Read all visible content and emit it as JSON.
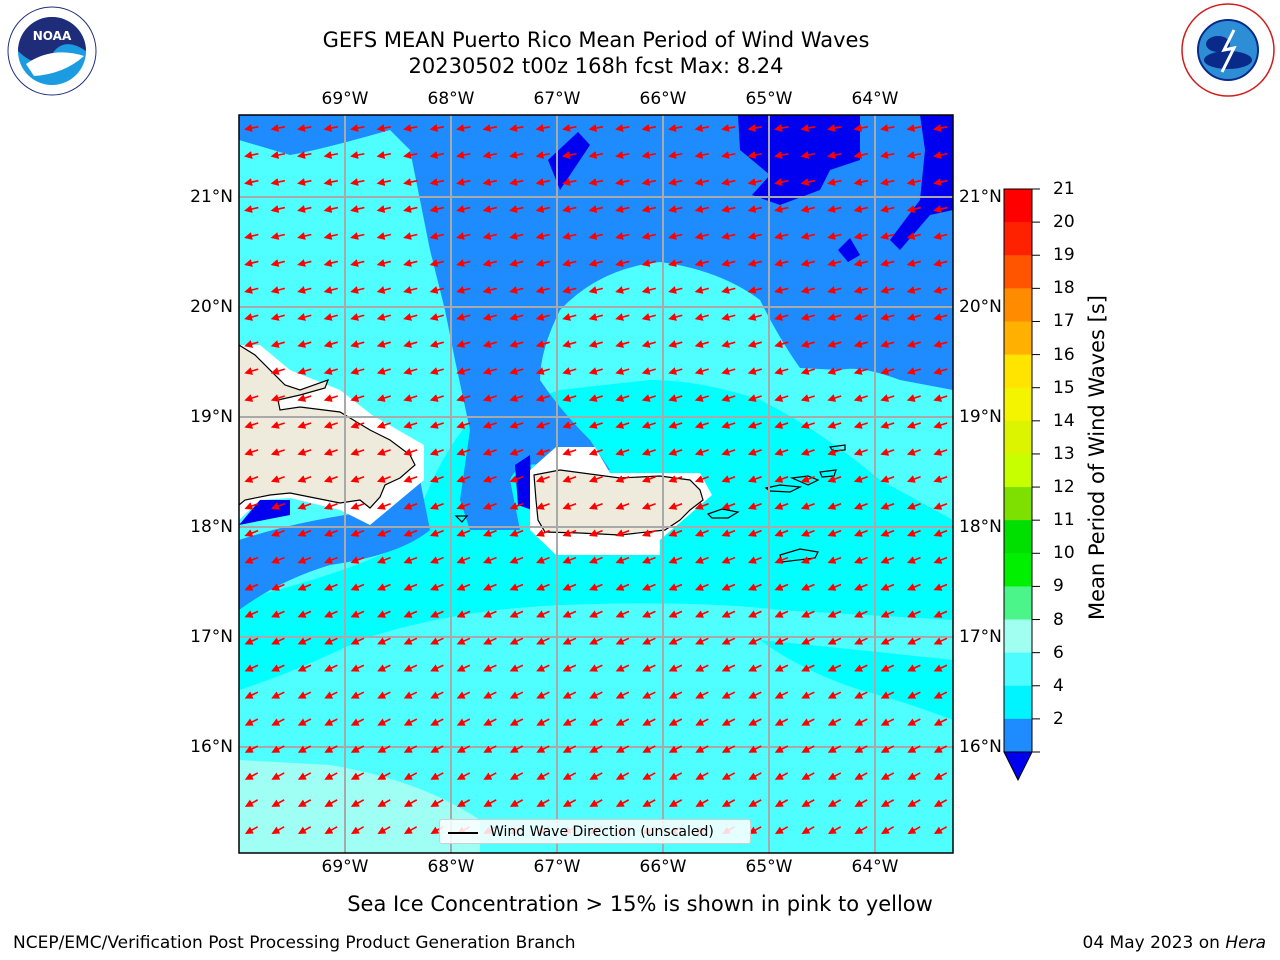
{
  "titles": {
    "line1": "GEFS MEAN Puerto Rico Mean Period of Wind Waves",
    "line2": "20230502 t00z 168h fcst   Max: 8.24"
  },
  "logos": {
    "left": "NOAA",
    "right": "NATIONAL WEATHER SERVICE"
  },
  "map": {
    "lon_ticks": [
      "69°W",
      "68°W",
      "67°W",
      "66°W",
      "65°W",
      "64°W"
    ],
    "lat_ticks": [
      "21°N",
      "20°N",
      "19°N",
      "18°N",
      "17°N",
      "16°N"
    ],
    "legend_label": "Wind Wave Direction (unscaled)"
  },
  "colorbar": {
    "label": "Mean Period of Wind Waves [s]",
    "ticks": [
      "21",
      "20",
      "19",
      "18",
      "17",
      "16",
      "15",
      "14",
      "13",
      "12",
      "11",
      "10",
      "9",
      "8",
      "6",
      "4",
      "2"
    ],
    "colors": [
      "#ff0000",
      "#ff2200",
      "#ff5500",
      "#ff8c00",
      "#ffb000",
      "#ffe400",
      "#f4f400",
      "#ddf400",
      "#c8ff00",
      "#7ee000",
      "#00e000",
      "#00f000",
      "#4cf58a",
      "#a0fff0",
      "#4cfcff",
      "#00f4ff",
      "#1e8cff"
    ],
    "under_color": "#0000f0"
  },
  "chart_data": {
    "type": "heatmap",
    "title": "GEFS MEAN Puerto Rico Mean Period of Wind Waves",
    "subtitle": "20230502 t00z 168h fcst   Max: 8.24",
    "x_axis": "longitude",
    "xlim": [
      "69.9°W",
      "63.2°W"
    ],
    "y_axis": "latitude",
    "ylim": [
      "15.1°N",
      "21.7°N"
    ],
    "color_label": "Mean Period of Wind Waves [s]",
    "color_levels": [
      2,
      4,
      6,
      8,
      9,
      10,
      11,
      12,
      13,
      14,
      15,
      16,
      17,
      18,
      19,
      20,
      21
    ],
    "max_value": 8.24,
    "grid": true,
    "legend_placement": "bottom-center",
    "vectors": "Wind Wave Direction (unscaled)"
  },
  "notes": {
    "sea_ice": "Sea Ice Concentration > 15% is shown in pink to yellow",
    "credit": "NCEP/EMC/Verification Post Processing Product Generation Branch",
    "date": "04 May 2023 on ",
    "machine": "Hera"
  },
  "colors": {
    "ocean_light": "#00ffff",
    "ocean_mid": "#4ffeff",
    "ocean_pale": "#a0fff4",
    "ocean_deep": "#1e8cff",
    "ocean_deepest": "#0000f0",
    "land": "#efebdc",
    "arrow": "#ff0000"
  }
}
